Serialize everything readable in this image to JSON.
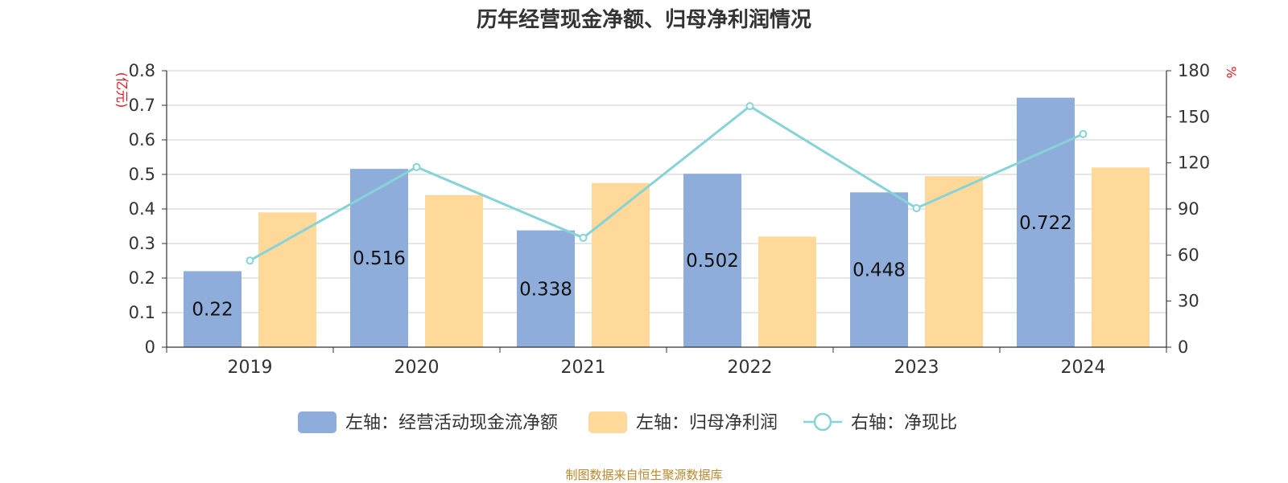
{
  "chart_data": {
    "type": "bar",
    "title": "历年经营现金净额、归母净利润情况",
    "categories": [
      "2019",
      "2020",
      "2021",
      "2022",
      "2023",
      "2024"
    ],
    "series": [
      {
        "name": "左轴：经营活动现金流净额",
        "type": "bar",
        "axis": "left",
        "color": "#8eaddb",
        "values": [
          0.22,
          0.516,
          0.338,
          0.502,
          0.448,
          0.722
        ],
        "labels": [
          "0.22",
          "0.516",
          "0.338",
          "0.502",
          "0.448",
          "0.722"
        ]
      },
      {
        "name": "左轴：归母净利润",
        "type": "bar",
        "axis": "left",
        "color": "#ffd999",
        "values": [
          0.39,
          0.44,
          0.475,
          0.32,
          0.495,
          0.52
        ]
      },
      {
        "name": "右轴：净现比",
        "type": "line",
        "axis": "right",
        "color": "#86d3d8",
        "values": [
          56.4,
          117.3,
          71.2,
          156.9,
          90.5,
          138.8
        ]
      }
    ],
    "left_axis": {
      "unit": "(亿元)",
      "min": 0,
      "max": 0.8,
      "ticks": [
        "0",
        "0.1",
        "0.2",
        "0.3",
        "0.4",
        "0.5",
        "0.6",
        "0.7",
        "0.8"
      ]
    },
    "right_axis": {
      "unit": "%",
      "min": 0,
      "max": 180,
      "ticks": [
        "0",
        "30",
        "60",
        "90",
        "120",
        "150",
        "180"
      ]
    },
    "grid": true,
    "legend_position": "bottom"
  },
  "source": "制图数据来自恒生聚源数据库"
}
